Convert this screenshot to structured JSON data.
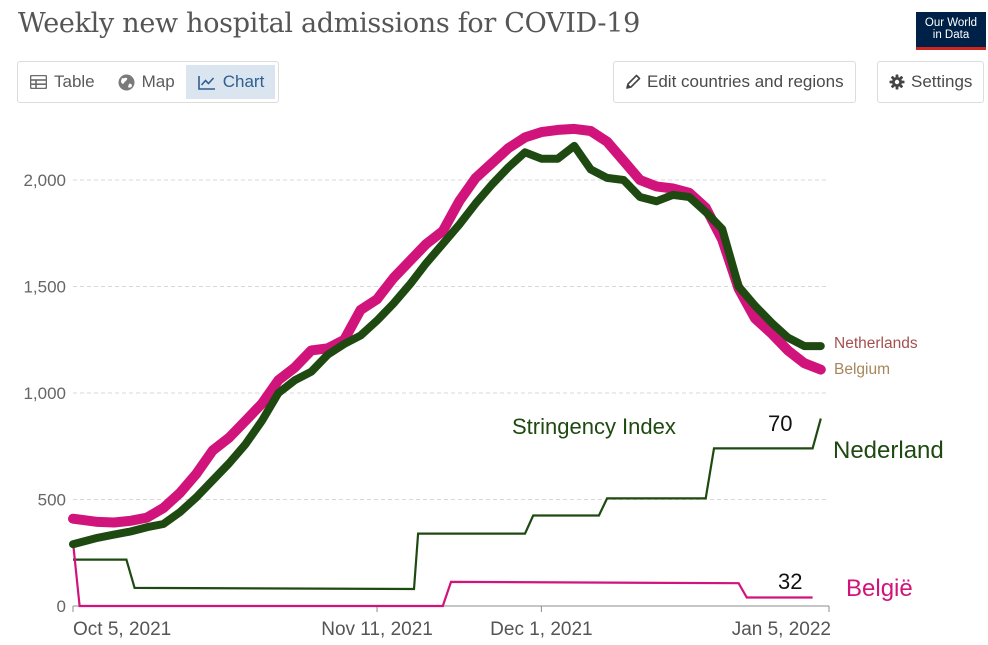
{
  "header": {
    "title": "Weekly new hospital admissions for COVID-19",
    "logo_line1": "Our World",
    "logo_line2": "in Data"
  },
  "toolbar": {
    "tabs": [
      {
        "label": "Table",
        "icon": "table-icon"
      },
      {
        "label": "Map",
        "icon": "globe-icon"
      },
      {
        "label": "Chart",
        "icon": "line-chart-icon",
        "active": true
      }
    ],
    "edit_label": "Edit countries and regions",
    "settings_label": "Settings"
  },
  "colors": {
    "belgium": "#d1137c",
    "netherlands": "#1e4a12",
    "netherlands_label": "#a4504f",
    "belgium_label": "#a7865c",
    "grid": "#d9d9d9"
  },
  "annotations": {
    "stringency_label": "Stringency Index",
    "nl_value": "70",
    "be_value": "32",
    "nl_name": "Nederland",
    "be_name": "België"
  },
  "chart_data": {
    "type": "line",
    "title": "Weekly new hospital admissions for COVID-19",
    "x_ticks": [
      "Oct 5, 2021",
      "Nov 11, 2021",
      "Dec 1, 2021",
      "Jan 5, 2022"
    ],
    "x_tick_days": [
      0,
      37,
      57,
      92
    ],
    "xlim_days": [
      0,
      92
    ],
    "y_ticks": [
      "0",
      "500",
      "1,000",
      "1,500",
      "2,000"
    ],
    "y_tick_values": [
      0,
      500,
      1000,
      1500,
      2000
    ],
    "ylim": [
      0,
      2250
    ],
    "series": [
      {
        "name": "Belgium",
        "legend_label": "Belgium",
        "x_days": [
          0,
          3,
          5,
          7,
          9,
          11,
          13,
          15,
          17,
          19,
          21,
          23,
          25,
          27,
          29,
          31,
          33,
          35,
          37,
          39,
          41,
          43,
          45,
          47,
          49,
          51,
          53,
          55,
          57,
          59,
          61,
          63,
          65,
          67,
          69,
          71,
          73,
          75,
          77,
          79,
          81,
          83,
          85,
          87,
          89,
          91
        ],
        "values": [
          410,
          395,
          392,
          400,
          415,
          460,
          530,
          620,
          730,
          790,
          870,
          950,
          1060,
          1120,
          1200,
          1210,
          1250,
          1390,
          1440,
          1540,
          1620,
          1700,
          1760,
          1900,
          2010,
          2080,
          2150,
          2200,
          2225,
          2235,
          2240,
          2230,
          2180,
          2090,
          2000,
          1970,
          1960,
          1940,
          1870,
          1720,
          1490,
          1350,
          1280,
          1200,
          1140,
          1110
        ]
      },
      {
        "name": "Netherlands",
        "legend_label": "Netherlands",
        "x_days": [
          0,
          3,
          5,
          7,
          9,
          11,
          13,
          15,
          17,
          19,
          21,
          23,
          25,
          27,
          29,
          31,
          33,
          35,
          37,
          39,
          41,
          43,
          45,
          47,
          49,
          51,
          53,
          55,
          57,
          59,
          61,
          63,
          65,
          67,
          69,
          71,
          73,
          75,
          77,
          79,
          81,
          83,
          85,
          87,
          89,
          91
        ],
        "values": [
          290,
          320,
          335,
          350,
          370,
          385,
          440,
          510,
          590,
          670,
          760,
          870,
          1000,
          1060,
          1100,
          1180,
          1230,
          1270,
          1340,
          1420,
          1510,
          1610,
          1700,
          1790,
          1890,
          1980,
          2060,
          2130,
          2100,
          2100,
          2160,
          2050,
          2010,
          2000,
          1920,
          1900,
          1930,
          1920,
          1850,
          1770,
          1500,
          1410,
          1330,
          1260,
          1220,
          1220
        ]
      },
      {
        "name": "Stringency Index - Nederland",
        "annotation_value": 70,
        "step_points_days": [
          [
            0,
            218
          ],
          [
            6.5,
            218
          ],
          [
            7.5,
            85
          ],
          [
            41.5,
            80
          ],
          [
            42,
            340
          ],
          [
            55,
            340
          ],
          [
            56,
            425
          ],
          [
            64,
            425
          ],
          [
            65,
            505
          ],
          [
            77,
            505
          ],
          [
            78,
            740
          ],
          [
            90,
            740
          ],
          [
            91,
            880
          ]
        ]
      },
      {
        "name": "Stringency Index - België",
        "annotation_value": 32,
        "step_points_days": [
          [
            0,
            300
          ],
          [
            0.8,
            0
          ],
          [
            45,
            0
          ],
          [
            46,
            113
          ],
          [
            81,
            107
          ],
          [
            82,
            40
          ],
          [
            90,
            40
          ]
        ]
      }
    ]
  }
}
